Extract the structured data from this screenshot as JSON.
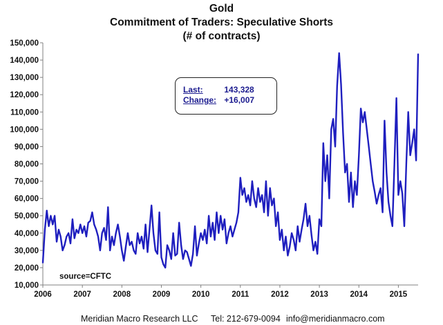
{
  "header": {
    "title_line1": "Gold",
    "title_line2": "Commitment of Traders: Speculative Shorts",
    "title_line3": "(# of contracts)"
  },
  "annotation": {
    "last_label": "Last:",
    "last_value": "143,328",
    "change_label": "Change:",
    "change_value": "+16,007"
  },
  "source_note": "source=CFTC",
  "footer": {
    "company": "Meridian Macro Research LLC",
    "phone": "Tel: 212-679-0094",
    "email": "info@meridianmacro.com"
  },
  "colors": {
    "series": "#1f1fbf",
    "axis": "#808080"
  },
  "chart_data": {
    "type": "line",
    "title": "Gold Commitment of Traders: Speculative Shorts (# of contracts)",
    "xlabel": "",
    "ylabel": "",
    "grid": false,
    "xlim": [
      2006.0,
      2015.5
    ],
    "ylim": [
      10000,
      150000
    ],
    "x_ticks": [
      "2006",
      "2007",
      "2008",
      "2009",
      "2010",
      "2011",
      "2012",
      "2013",
      "2014",
      "2015"
    ],
    "y_ticks": [
      "10,000",
      "20,000",
      "30,000",
      "40,000",
      "50,000",
      "60,000",
      "70,000",
      "80,000",
      "90,000",
      "100,000",
      "110,000",
      "120,000",
      "130,000",
      "140,000",
      "150,000"
    ],
    "series": [
      {
        "name": "Speculative Shorts",
        "x": [
          2006.0,
          2006.05,
          2006.1,
          2006.15,
          2006.2,
          2006.25,
          2006.3,
          2006.35,
          2006.4,
          2006.45,
          2006.5,
          2006.55,
          2006.6,
          2006.65,
          2006.7,
          2006.75,
          2006.8,
          2006.85,
          2006.9,
          2006.95,
          2007.0,
          2007.05,
          2007.1,
          2007.15,
          2007.2,
          2007.25,
          2007.3,
          2007.35,
          2007.4,
          2007.45,
          2007.5,
          2007.55,
          2007.6,
          2007.65,
          2007.7,
          2007.75,
          2007.8,
          2007.85,
          2007.9,
          2007.95,
          2008.0,
          2008.05,
          2008.1,
          2008.15,
          2008.2,
          2008.25,
          2008.3,
          2008.35,
          2008.4,
          2008.45,
          2008.5,
          2008.55,
          2008.6,
          2008.65,
          2008.7,
          2008.75,
          2008.8,
          2008.85,
          2008.9,
          2008.95,
          2009.0,
          2009.05,
          2009.1,
          2009.15,
          2009.2,
          2009.25,
          2009.3,
          2009.35,
          2009.4,
          2009.45,
          2009.5,
          2009.55,
          2009.6,
          2009.65,
          2009.7,
          2009.75,
          2009.8,
          2009.85,
          2009.9,
          2009.95,
          2010.0,
          2010.05,
          2010.1,
          2010.15,
          2010.2,
          2010.25,
          2010.3,
          2010.35,
          2010.4,
          2010.45,
          2010.5,
          2010.55,
          2010.6,
          2010.65,
          2010.7,
          2010.75,
          2010.8,
          2010.85,
          2010.9,
          2010.95,
          2011.0,
          2011.05,
          2011.1,
          2011.15,
          2011.2,
          2011.25,
          2011.3,
          2011.35,
          2011.4,
          2011.45,
          2011.5,
          2011.55,
          2011.6,
          2011.65,
          2011.7,
          2011.75,
          2011.8,
          2011.85,
          2011.9,
          2011.95,
          2012.0,
          2012.05,
          2012.1,
          2012.15,
          2012.2,
          2012.25,
          2012.3,
          2012.35,
          2012.4,
          2012.45,
          2012.5,
          2012.55,
          2012.6,
          2012.65,
          2012.7,
          2012.75,
          2012.8,
          2012.85,
          2012.9,
          2012.95,
          2013.0,
          2013.05,
          2013.1,
          2013.15,
          2013.2,
          2013.25,
          2013.3,
          2013.35,
          2013.4,
          2013.45,
          2013.5,
          2013.55,
          2013.6,
          2013.65,
          2013.7,
          2013.75,
          2013.8,
          2013.85,
          2013.9,
          2013.95,
          2014.0,
          2014.05,
          2014.1,
          2014.15,
          2014.2,
          2014.25,
          2014.3,
          2014.35,
          2014.4,
          2014.45,
          2014.5,
          2014.55,
          2014.6,
          2014.65,
          2014.7,
          2014.75,
          2014.8,
          2014.85,
          2014.9,
          2014.95,
          2015.0,
          2015.05,
          2015.1,
          2015.15,
          2015.2,
          2015.25,
          2015.3,
          2015.35,
          2015.4,
          2015.45,
          2015.5
        ],
        "values": [
          23000,
          42000,
          53000,
          44000,
          50000,
          45000,
          50000,
          35000,
          42000,
          38000,
          30000,
          33000,
          38000,
          40000,
          34000,
          48000,
          37000,
          42000,
          40000,
          45000,
          40000,
          44000,
          38000,
          46000,
          47000,
          52000,
          45000,
          42000,
          38000,
          30000,
          40000,
          43000,
          36000,
          55000,
          30000,
          38000,
          33000,
          40000,
          45000,
          38000,
          30000,
          24000,
          32000,
          40000,
          33000,
          35000,
          30000,
          28000,
          40000,
          34000,
          38000,
          31000,
          45000,
          29000,
          42000,
          56000,
          40000,
          30000,
          28000,
          52000,
          26000,
          22000,
          20000,
          33000,
          30000,
          25000,
          40000,
          27000,
          28000,
          46000,
          33000,
          25000,
          30000,
          29000,
          25000,
          21000,
          28000,
          44000,
          27000,
          34000,
          40000,
          36000,
          42000,
          34000,
          50000,
          38000,
          46000,
          36000,
          52000,
          40000,
          50000,
          42000,
          48000,
          34000,
          40000,
          44000,
          38000,
          42000,
          46000,
          52000,
          72000,
          62000,
          66000,
          58000,
          62000,
          56000,
          70000,
          60000,
          55000,
          66000,
          58000,
          62000,
          52000,
          70000,
          50000,
          66000,
          56000,
          60000,
          44000,
          52000,
          36000,
          42000,
          30000,
          38000,
          27000,
          32000,
          40000,
          36000,
          30000,
          44000,
          35000,
          42000,
          48000,
          57000,
          44000,
          50000,
          39000,
          30000,
          35000,
          28000,
          48000,
          44000,
          92000,
          70000,
          85000,
          60000,
          100000,
          106000,
          90000,
          125000,
          144000,
          126000,
          98000,
          75000,
          80000,
          58000,
          75000,
          55000,
          70000,
          62000,
          85000,
          112000,
          104000,
          110000,
          100000,
          90000,
          80000,
          70000,
          64000,
          57000,
          62000,
          66000,
          52000,
          105000,
          75000,
          58000,
          50000,
          44000,
          80000,
          118000,
          62000,
          70000,
          63000,
          44000,
          80000,
          110000,
          85000,
          92000,
          100000,
          82000,
          143328
        ]
      }
    ]
  }
}
